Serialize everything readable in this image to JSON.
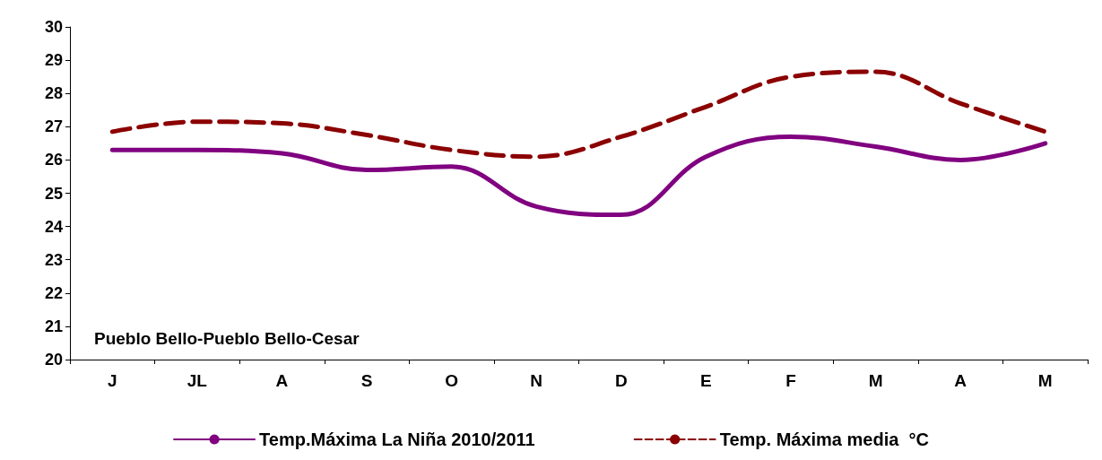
{
  "chart_data": {
    "type": "line",
    "categories": [
      "J",
      "JL",
      "A",
      "S",
      "O",
      "N",
      "D",
      "E",
      "F",
      "M",
      "A",
      "M"
    ],
    "series": [
      {
        "name": "Temp.Máxima La Niña 2010/2011",
        "color": "#800080",
        "line_style": "solid",
        "values": [
          26.3,
          26.3,
          26.2,
          25.7,
          25.8,
          24.6,
          24.35,
          26.1,
          26.7,
          26.4,
          26.0,
          26.5
        ]
      },
      {
        "name": "Temp. Máxima media  °C",
        "color": "#8b0000",
        "line_style": "dashed",
        "values": [
          26.85,
          27.15,
          27.1,
          26.75,
          26.3,
          26.1,
          26.7,
          27.6,
          28.5,
          28.65,
          27.7,
          26.85
        ]
      }
    ],
    "ylim": [
      20,
      30
    ],
    "yticks": [
      20,
      21,
      22,
      23,
      24,
      25,
      26,
      27,
      28,
      29,
      30
    ],
    "grid": false,
    "legend": "bottom",
    "marker": "none",
    "annotations": [
      "Pueblo Bello-Pueblo Bello-Cesar"
    ]
  }
}
